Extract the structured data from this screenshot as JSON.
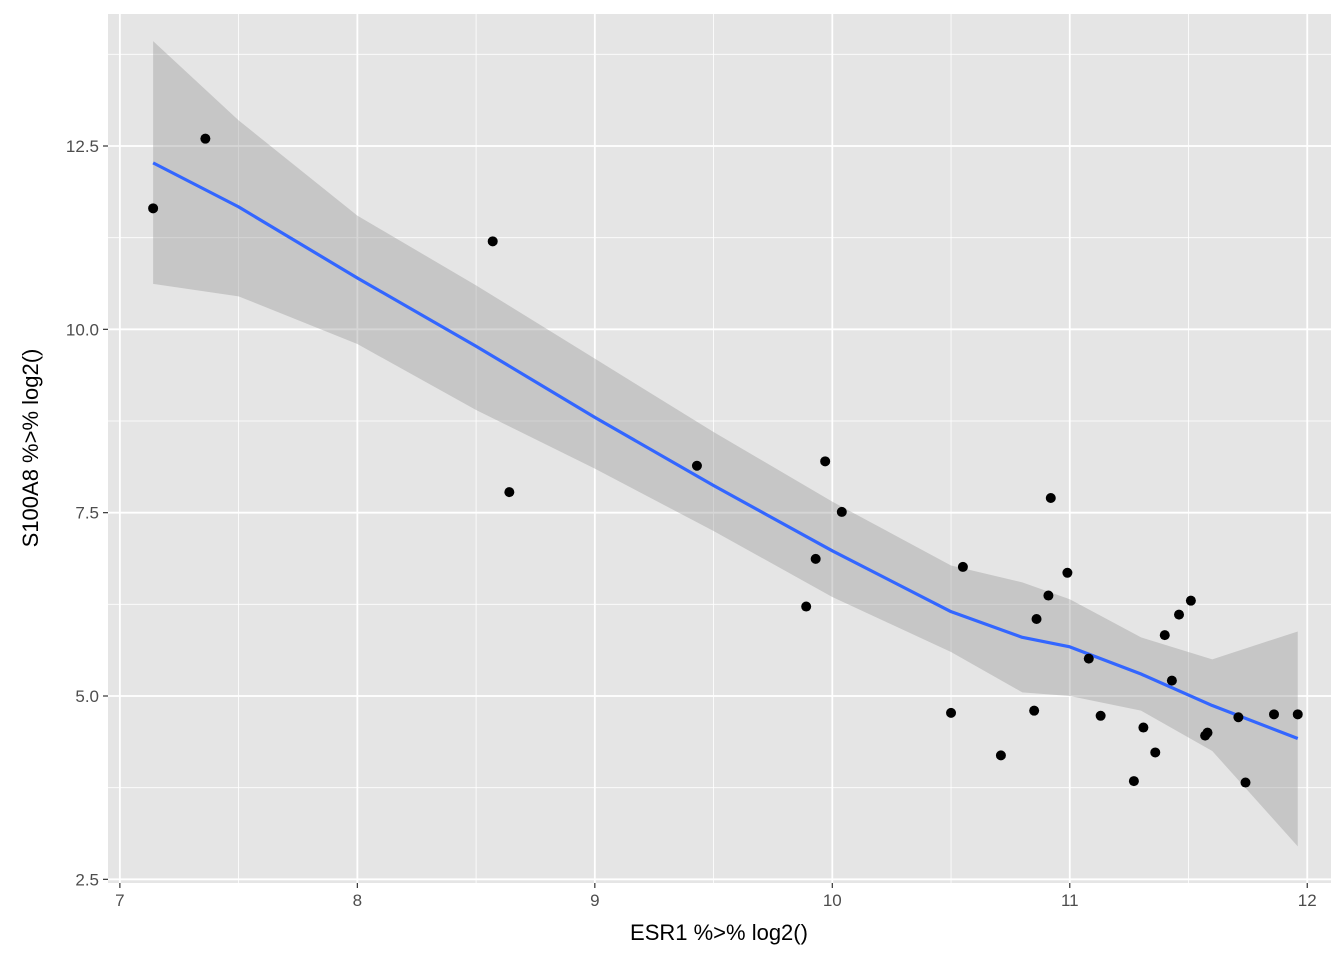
{
  "chart_data": {
    "type": "scatter",
    "xlabel": "ESR1 %>% log2()",
    "ylabel": "S100A8 %>% log2()",
    "xlim": [
      6.95,
      12.1
    ],
    "ylim": [
      2.45,
      14.3
    ],
    "x_ticks": [
      7,
      8,
      9,
      10,
      11,
      12
    ],
    "x_tick_labels": [
      "7",
      "8",
      "9",
      "10",
      "11",
      "12"
    ],
    "y_ticks": [
      2.5,
      5.0,
      7.5,
      10.0,
      12.5
    ],
    "y_tick_labels": [
      "2.5",
      "5.0",
      "7.5",
      "10.0",
      "12.5"
    ],
    "x_minor": [
      7.5,
      8.5,
      9.5,
      10.5,
      11.5
    ],
    "y_minor": [
      3.75,
      6.25,
      8.75,
      11.25,
      13.75
    ],
    "grid": true,
    "colors": {
      "panel": "#e5e5e5",
      "grid": "#ffffff",
      "point": "#000000",
      "smooth": "#3366ff",
      "ribbon": "#999999"
    },
    "points": [
      {
        "x": 7.14,
        "y": 11.65
      },
      {
        "x": 7.36,
        "y": 12.6
      },
      {
        "x": 8.57,
        "y": 11.2
      },
      {
        "x": 8.64,
        "y": 7.78
      },
      {
        "x": 9.43,
        "y": 8.14
      },
      {
        "x": 9.89,
        "y": 6.22
      },
      {
        "x": 9.93,
        "y": 6.87
      },
      {
        "x": 9.97,
        "y": 8.2
      },
      {
        "x": 10.04,
        "y": 7.51
      },
      {
        "x": 10.5,
        "y": 4.77
      },
      {
        "x": 10.55,
        "y": 6.76
      },
      {
        "x": 10.71,
        "y": 4.19
      },
      {
        "x": 10.85,
        "y": 4.8
      },
      {
        "x": 10.86,
        "y": 6.05
      },
      {
        "x": 10.91,
        "y": 6.37
      },
      {
        "x": 10.92,
        "y": 7.7
      },
      {
        "x": 10.99,
        "y": 6.68
      },
      {
        "x": 11.08,
        "y": 5.51
      },
      {
        "x": 11.13,
        "y": 4.73
      },
      {
        "x": 11.27,
        "y": 3.84
      },
      {
        "x": 11.31,
        "y": 4.57
      },
      {
        "x": 11.36,
        "y": 4.23
      },
      {
        "x": 11.4,
        "y": 5.83
      },
      {
        "x": 11.43,
        "y": 5.21
      },
      {
        "x": 11.46,
        "y": 6.11
      },
      {
        "x": 11.51,
        "y": 6.3
      },
      {
        "x": 11.57,
        "y": 4.46
      },
      {
        "x": 11.58,
        "y": 4.5
      },
      {
        "x": 11.71,
        "y": 4.71
      },
      {
        "x": 11.74,
        "y": 3.82
      },
      {
        "x": 11.86,
        "y": 4.75
      },
      {
        "x": 11.96,
        "y": 4.75
      }
    ],
    "smooth": {
      "x": [
        7.14,
        7.5,
        8.0,
        8.5,
        9.0,
        9.5,
        10.0,
        10.5,
        10.8,
        11.0,
        11.3,
        11.6,
        11.96
      ],
      "y": [
        12.27,
        11.67,
        10.7,
        9.77,
        8.8,
        7.87,
        6.98,
        6.15,
        5.8,
        5.67,
        5.3,
        4.87,
        4.42
      ],
      "upper": [
        13.93,
        12.85,
        11.55,
        10.6,
        9.6,
        8.6,
        7.65,
        6.78,
        6.55,
        6.32,
        5.8,
        5.5,
        5.88
      ],
      "lower": [
        10.62,
        10.45,
        9.8,
        8.9,
        8.1,
        7.25,
        6.35,
        5.6,
        5.05,
        5.0,
        4.8,
        4.25,
        2.95
      ]
    }
  }
}
